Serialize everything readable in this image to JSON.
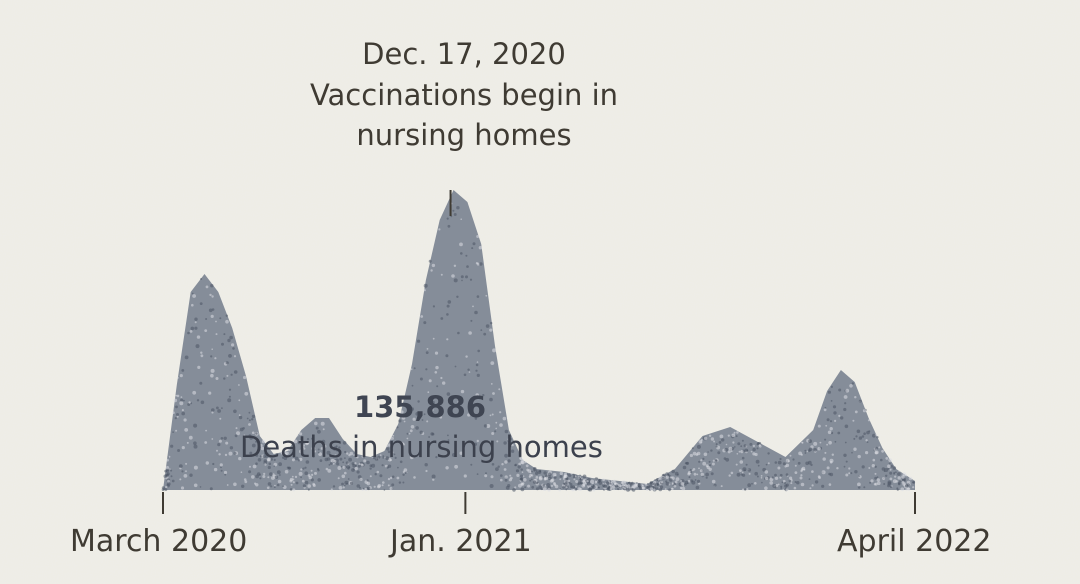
{
  "annotation": {
    "date": "Dec. 17, 2020",
    "text": "Vaccinations begin in nursing homes"
  },
  "total": {
    "value": "135,886",
    "label": "Deaths in nursing homes"
  },
  "colors": {
    "background": "#eeede6",
    "marks": "#6e7888",
    "text": "#3f3b33"
  },
  "chart_data": {
    "type": "area",
    "title": "",
    "xlabel": "",
    "ylabel": "",
    "x_range": [
      "2020-03",
      "2022-04"
    ],
    "ylim": [
      0,
      1
    ],
    "y_unit": "relative weekly deaths (peak = 1.0)",
    "x_ticks": [
      "March 2020",
      "Jan. 2021",
      "April 2022"
    ],
    "annotation": {
      "x": "2020-12-17",
      "label": "Dec. 17, 2020 Vaccinations begin in nursing homes"
    },
    "series": [
      {
        "points": [
          [
            "2020-03-01",
            0.0
          ],
          [
            "2020-03-15",
            0.35
          ],
          [
            "2020-03-29",
            0.66
          ],
          [
            "2020-04-12",
            0.72
          ],
          [
            "2020-04-26",
            0.66
          ],
          [
            "2020-05-10",
            0.54
          ],
          [
            "2020-05-24",
            0.38
          ],
          [
            "2020-06-07",
            0.18
          ],
          [
            "2020-06-21",
            0.12
          ],
          [
            "2020-07-05",
            0.13
          ],
          [
            "2020-07-19",
            0.2
          ],
          [
            "2020-08-02",
            0.24
          ],
          [
            "2020-08-16",
            0.24
          ],
          [
            "2020-08-30",
            0.17
          ],
          [
            "2020-09-13",
            0.12
          ],
          [
            "2020-09-27",
            0.11
          ],
          [
            "2020-10-11",
            0.13
          ],
          [
            "2020-10-25",
            0.22
          ],
          [
            "2020-11-08",
            0.42
          ],
          [
            "2020-11-22",
            0.7
          ],
          [
            "2020-12-06",
            0.9
          ],
          [
            "2020-12-20",
            1.0
          ],
          [
            "2021-01-03",
            0.96
          ],
          [
            "2021-01-17",
            0.82
          ],
          [
            "2021-01-31",
            0.48
          ],
          [
            "2021-02-14",
            0.2
          ],
          [
            "2021-02-28",
            0.1
          ],
          [
            "2021-03-14",
            0.07
          ],
          [
            "2021-04-11",
            0.06
          ],
          [
            "2021-05-09",
            0.04
          ],
          [
            "2021-06-06",
            0.03
          ],
          [
            "2021-07-04",
            0.02
          ],
          [
            "2021-08-01",
            0.07
          ],
          [
            "2021-08-29",
            0.18
          ],
          [
            "2021-09-26",
            0.21
          ],
          [
            "2021-10-24",
            0.16
          ],
          [
            "2021-11-21",
            0.11
          ],
          [
            "2021-12-19",
            0.2
          ],
          [
            "2022-01-02",
            0.33
          ],
          [
            "2022-01-16",
            0.4
          ],
          [
            "2022-01-30",
            0.36
          ],
          [
            "2022-02-13",
            0.24
          ],
          [
            "2022-02-27",
            0.14
          ],
          [
            "2022-03-13",
            0.07
          ],
          [
            "2022-04-01",
            0.03
          ]
        ]
      }
    ]
  }
}
